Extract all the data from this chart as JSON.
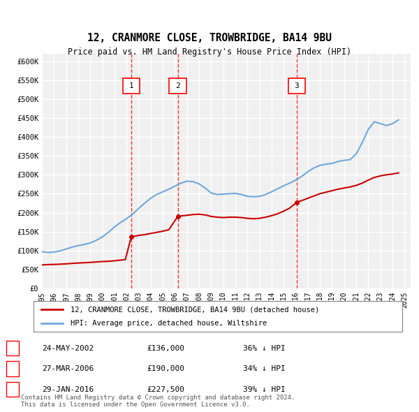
{
  "title": "12, CRANMORE CLOSE, TROWBRIDGE, BA14 9BU",
  "subtitle": "Price paid vs. HM Land Registry's House Price Index (HPI)",
  "title_fontsize": 11,
  "subtitle_fontsize": 9,
  "ylabel": "",
  "xlabel": "",
  "ylim": [
    0,
    620000
  ],
  "yticks": [
    0,
    50000,
    100000,
    150000,
    200000,
    250000,
    300000,
    350000,
    400000,
    450000,
    500000,
    550000,
    600000
  ],
  "ytick_labels": [
    "£0",
    "£50K",
    "£100K",
    "£150K",
    "£200K",
    "£250K",
    "£300K",
    "£350K",
    "£400K",
    "£450K",
    "£500K",
    "£550K",
    "£600K"
  ],
  "xlim_start": 1995.0,
  "xlim_end": 2025.5,
  "sale_dates": [
    2002.39,
    2006.24,
    2016.08
  ],
  "sale_prices": [
    136000,
    190000,
    227500
  ],
  "sale_labels": [
    "1",
    "2",
    "3"
  ],
  "hpi_color": "#6fa8dc",
  "price_color": "#cc0000",
  "background_color": "#ffffff",
  "plot_bg_color": "#f0f0f0",
  "grid_color": "#ffffff",
  "legend_label_price": "12, CRANMORE CLOSE, TROWBRIDGE, BA14 9BU (detached house)",
  "legend_label_hpi": "HPI: Average price, detached house, Wiltshire",
  "table_rows": [
    {
      "num": "1",
      "date": "24-MAY-2002",
      "price": "£136,000",
      "hpi": "36% ↓ HPI"
    },
    {
      "num": "2",
      "date": "27-MAR-2006",
      "price": "£190,000",
      "hpi": "34% ↓ HPI"
    },
    {
      "num": "3",
      "date": "29-JAN-2016",
      "price": "£227,500",
      "hpi": "39% ↓ HPI"
    }
  ],
  "footer": "Contains HM Land Registry data © Crown copyright and database right 2024.\nThis data is licensed under the Open Government Licence v3.0.",
  "hpi_x": [
    1995.0,
    1995.5,
    1996.0,
    1996.5,
    1997.0,
    1997.5,
    1998.0,
    1998.5,
    1999.0,
    1999.5,
    2000.0,
    2000.5,
    2001.0,
    2001.5,
    2002.0,
    2002.5,
    2003.0,
    2003.5,
    2004.0,
    2004.5,
    2005.0,
    2005.5,
    2006.0,
    2006.5,
    2007.0,
    2007.5,
    2008.0,
    2008.5,
    2009.0,
    2009.5,
    2010.0,
    2010.5,
    2011.0,
    2011.5,
    2012.0,
    2012.5,
    2013.0,
    2013.5,
    2014.0,
    2014.5,
    2015.0,
    2015.5,
    2016.0,
    2016.5,
    2017.0,
    2017.5,
    2018.0,
    2018.5,
    2019.0,
    2019.5,
    2020.0,
    2020.5,
    2021.0,
    2021.5,
    2022.0,
    2022.5,
    2023.0,
    2023.5,
    2024.0,
    2024.5
  ],
  "hpi_y": [
    97000,
    95000,
    96000,
    99000,
    104000,
    109000,
    113000,
    116000,
    120000,
    127000,
    136000,
    148000,
    162000,
    174000,
    184000,
    196000,
    211000,
    225000,
    238000,
    248000,
    255000,
    262000,
    270000,
    278000,
    283000,
    282000,
    276000,
    265000,
    252000,
    248000,
    249000,
    250000,
    251000,
    248000,
    243000,
    242000,
    243000,
    248000,
    255000,
    263000,
    271000,
    278000,
    286000,
    296000,
    308000,
    318000,
    325000,
    328000,
    330000,
    335000,
    338000,
    340000,
    355000,
    385000,
    420000,
    440000,
    435000,
    430000,
    435000,
    445000
  ],
  "price_x": [
    1995.0,
    1995.3,
    1995.6,
    1995.9,
    1996.2,
    1996.5,
    1996.8,
    1997.1,
    1997.4,
    1997.7,
    1998.0,
    1998.3,
    1998.6,
    1998.9,
    1999.2,
    1999.5,
    1999.8,
    2000.1,
    2000.4,
    2000.7,
    2001.0,
    2001.3,
    2001.6,
    2001.9,
    2002.39,
    2002.7,
    2003.0,
    2003.5,
    2004.0,
    2004.5,
    2005.0,
    2005.5,
    2006.24,
    2006.7,
    2007.0,
    2007.5,
    2008.0,
    2008.5,
    2009.0,
    2009.5,
    2010.0,
    2010.5,
    2011.0,
    2011.5,
    2012.0,
    2012.5,
    2013.0,
    2013.5,
    2014.0,
    2014.5,
    2015.0,
    2015.5,
    2016.08,
    2016.5,
    2017.0,
    2017.5,
    2018.0,
    2018.5,
    2019.0,
    2019.5,
    2020.0,
    2020.5,
    2021.0,
    2021.5,
    2022.0,
    2022.5,
    2023.0,
    2023.5,
    2024.0,
    2024.5
  ],
  "price_y": [
    62000,
    62500,
    63000,
    63200,
    63500,
    64000,
    64500,
    65000,
    65800,
    66500,
    67000,
    67500,
    68000,
    68500,
    69000,
    69800,
    70500,
    71000,
    71500,
    72000,
    73000,
    74000,
    75000,
    76000,
    136000,
    138000,
    140000,
    142000,
    145000,
    148000,
    151000,
    155000,
    190000,
    192000,
    193000,
    195000,
    196000,
    194000,
    190000,
    188000,
    187000,
    188000,
    188000,
    187000,
    185000,
    184000,
    185000,
    188000,
    192000,
    197000,
    204000,
    212000,
    227500,
    232000,
    238000,
    244000,
    250000,
    254000,
    258000,
    262000,
    265000,
    268000,
    272000,
    278000,
    286000,
    293000,
    297000,
    300000,
    302000,
    305000
  ]
}
